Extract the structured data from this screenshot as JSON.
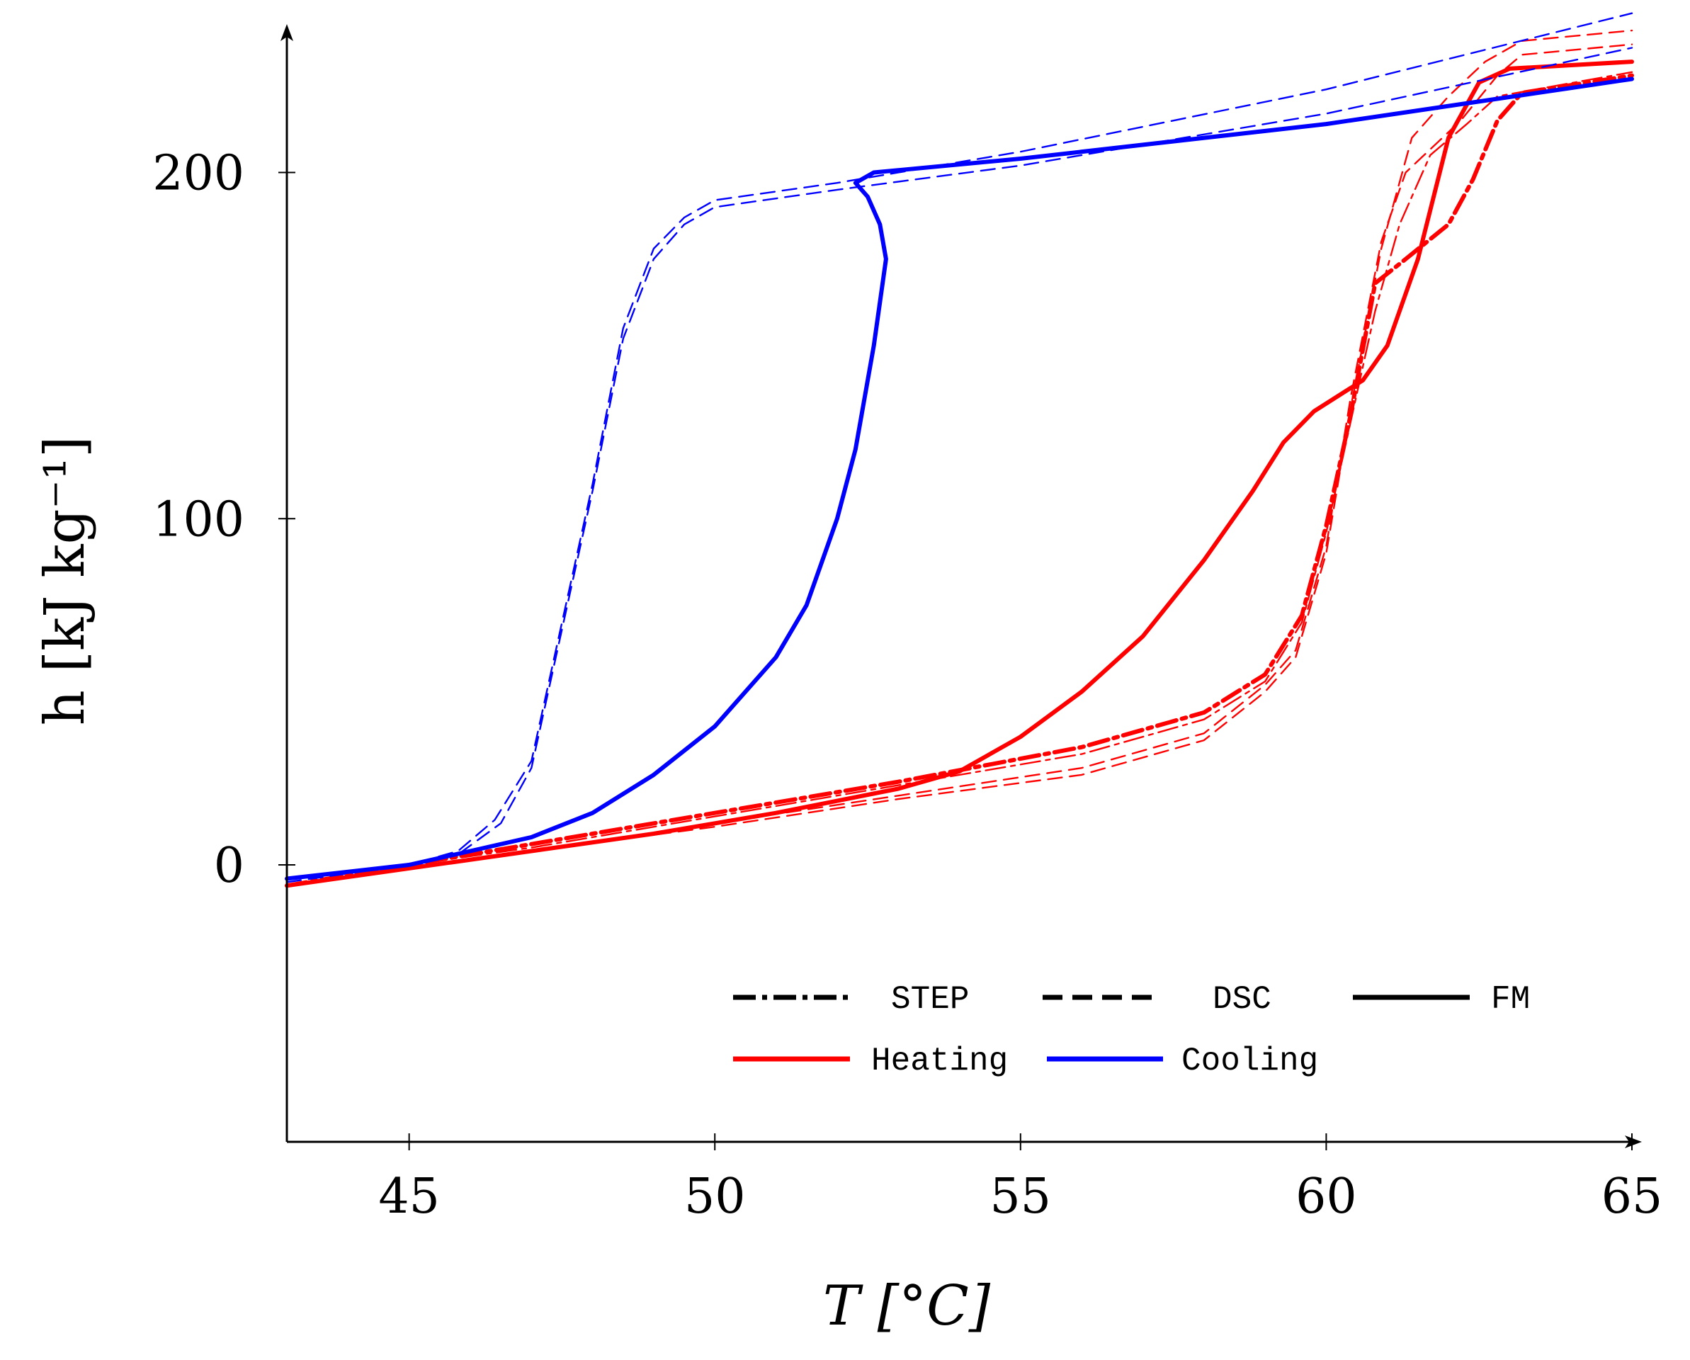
{
  "chart_data": {
    "type": "line",
    "title": "",
    "xlabel": "T [°C]",
    "ylabel": "h [kJ kg⁻¹]",
    "xlim": [
      43,
      65
    ],
    "ylim": [
      -80,
      240
    ],
    "xticks": [
      "45",
      "50",
      "55",
      "60",
      "65"
    ],
    "yticks": [
      "0",
      "100",
      "200"
    ],
    "legend": {
      "placement": "bottom-right",
      "styles": [
        {
          "label": "STEP",
          "dash": "dashdot"
        },
        {
          "label": "DSC",
          "dash": "dashed"
        },
        {
          "label": "FM",
          "dash": "solid"
        }
      ],
      "colors": [
        {
          "label": "Heating",
          "color": "#ff0000"
        },
        {
          "label": "Cooling",
          "color": "#0000ff"
        }
      ]
    },
    "series": [
      {
        "name": "FM Heating",
        "color": "#ff0000",
        "dash": "solid",
        "weight": "thick",
        "points": [
          [
            43,
            -6
          ],
          [
            45,
            -1
          ],
          [
            47,
            4
          ],
          [
            49,
            9
          ],
          [
            51,
            15
          ],
          [
            53,
            22
          ],
          [
            54,
            27
          ],
          [
            55,
            37
          ],
          [
            56,
            50
          ],
          [
            57,
            66
          ],
          [
            58,
            88
          ],
          [
            58.8,
            108
          ],
          [
            59.3,
            122
          ],
          [
            59.8,
            131
          ],
          [
            60.6,
            140
          ],
          [
            61,
            150
          ],
          [
            61.5,
            175
          ],
          [
            62,
            210
          ],
          [
            62.5,
            226
          ],
          [
            63,
            230
          ],
          [
            65,
            232
          ]
        ]
      },
      {
        "name": "STEP Heating",
        "color": "#ff0000",
        "dash": "dashdot",
        "weight": "thick",
        "points": [
          [
            43,
            -6
          ],
          [
            45,
            0
          ],
          [
            47,
            6
          ],
          [
            50,
            15
          ],
          [
            53,
            24
          ],
          [
            56,
            34
          ],
          [
            58,
            44
          ],
          [
            59,
            55
          ],
          [
            59.6,
            72
          ],
          [
            60,
            98
          ],
          [
            60.4,
            130
          ],
          [
            60.8,
            168
          ],
          [
            61.3,
            175
          ],
          [
            62,
            185
          ],
          [
            62.4,
            198
          ],
          [
            62.8,
            215
          ],
          [
            63.2,
            223
          ],
          [
            65,
            228
          ]
        ]
      },
      {
        "name": "STEP Heating 2",
        "color": "#ff0000",
        "dash": "dashdot",
        "weight": "thin",
        "points": [
          [
            43,
            -6
          ],
          [
            45,
            0
          ],
          [
            47,
            5
          ],
          [
            50,
            14
          ],
          [
            53,
            23
          ],
          [
            56,
            32
          ],
          [
            58,
            42
          ],
          [
            59,
            53
          ],
          [
            59.6,
            70
          ],
          [
            60,
            96
          ],
          [
            60.4,
            128
          ],
          [
            60.8,
            160
          ],
          [
            61.2,
            185
          ],
          [
            61.7,
            205
          ],
          [
            62.3,
            214
          ],
          [
            62.8,
            222
          ],
          [
            65,
            229
          ]
        ]
      },
      {
        "name": "DSC Heating 1",
        "color": "#ff0000",
        "dash": "dashed",
        "weight": "thin",
        "points": [
          [
            43,
            -6
          ],
          [
            45,
            -1
          ],
          [
            47,
            4
          ],
          [
            50,
            12
          ],
          [
            53,
            20
          ],
          [
            56,
            28
          ],
          [
            58,
            38
          ],
          [
            59,
            52
          ],
          [
            59.5,
            62
          ],
          [
            60,
            92
          ],
          [
            60.4,
            135
          ],
          [
            60.9,
            180
          ],
          [
            61.3,
            200
          ],
          [
            62.2,
            215
          ],
          [
            62.8,
            228
          ],
          [
            63.2,
            234
          ],
          [
            65,
            237
          ]
        ]
      },
      {
        "name": "DSC Heating 2",
        "color": "#ff0000",
        "dash": "dashed",
        "weight": "thin",
        "points": [
          [
            43,
            -6
          ],
          [
            45,
            -1
          ],
          [
            47,
            4
          ],
          [
            50,
            11
          ],
          [
            53,
            19
          ],
          [
            56,
            26
          ],
          [
            58,
            36
          ],
          [
            59,
            50
          ],
          [
            59.5,
            60
          ],
          [
            60,
            90
          ],
          [
            60.4,
            132
          ],
          [
            60.9,
            178
          ],
          [
            61.4,
            210
          ],
          [
            62,
            222
          ],
          [
            62.6,
            232
          ],
          [
            63.2,
            238
          ],
          [
            65,
            241
          ]
        ]
      },
      {
        "name": "FM Cooling",
        "color": "#0000ff",
        "dash": "solid",
        "weight": "thick",
        "points": [
          [
            43,
            -4
          ],
          [
            45,
            0
          ],
          [
            46,
            4
          ],
          [
            47,
            8
          ],
          [
            48,
            15
          ],
          [
            49,
            26
          ],
          [
            50,
            40
          ],
          [
            51,
            60
          ],
          [
            51.5,
            75
          ],
          [
            52,
            100
          ],
          [
            52.3,
            120
          ],
          [
            52.6,
            150
          ],
          [
            52.8,
            175
          ],
          [
            52.7,
            185
          ],
          [
            52.5,
            193
          ],
          [
            52.3,
            197
          ],
          [
            52.6,
            200
          ],
          [
            55,
            204
          ],
          [
            60,
            214
          ],
          [
            65,
            227
          ]
        ]
      },
      {
        "name": "DSC Cooling 1",
        "color": "#0000ff",
        "dash": "dashed",
        "weight": "thin",
        "points": [
          [
            43,
            -4
          ],
          [
            45,
            0
          ],
          [
            45.8,
            4
          ],
          [
            46.4,
            13
          ],
          [
            47,
            30
          ],
          [
            47.5,
            70
          ],
          [
            48,
            110
          ],
          [
            48.5,
            155
          ],
          [
            49,
            178
          ],
          [
            49.5,
            187
          ],
          [
            50,
            192
          ],
          [
            52,
            197
          ],
          [
            55,
            206
          ],
          [
            60,
            224
          ],
          [
            65,
            246
          ]
        ]
      },
      {
        "name": "DSC Cooling 2",
        "color": "#0000ff",
        "dash": "dashed",
        "weight": "thin",
        "points": [
          [
            43,
            -5
          ],
          [
            45,
            0
          ],
          [
            45.8,
            3
          ],
          [
            46.5,
            12
          ],
          [
            47,
            28
          ],
          [
            47.5,
            68
          ],
          [
            48,
            108
          ],
          [
            48.5,
            152
          ],
          [
            49,
            175
          ],
          [
            49.5,
            185
          ],
          [
            50,
            190
          ],
          [
            52,
            195
          ],
          [
            55,
            202
          ],
          [
            60,
            217
          ],
          [
            65,
            236
          ]
        ]
      }
    ]
  }
}
